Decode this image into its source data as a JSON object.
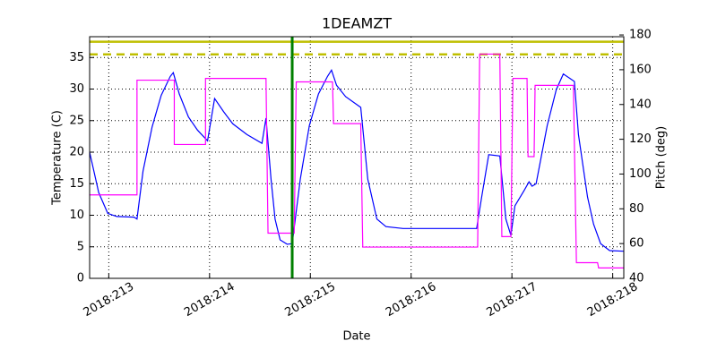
{
  "chart_data": {
    "type": "line",
    "title": "1DEAMZT",
    "x_label": "Date",
    "y_label": "Temperature (C)",
    "y2_label": "Pitch (deg)",
    "xlim": [
      212.81,
      218.11
    ],
    "xticks": [
      {
        "value": 213,
        "label": "2018:213"
      },
      {
        "value": 214,
        "label": "2018:214"
      },
      {
        "value": 215,
        "label": "2018:215"
      },
      {
        "value": 216,
        "label": "2018:216"
      },
      {
        "value": 217,
        "label": "2018:217"
      },
      {
        "value": 218,
        "label": "2018:218"
      }
    ],
    "ylim": [
      0,
      38.3
    ],
    "yticks": [
      0,
      5,
      10,
      15,
      20,
      25,
      30,
      35
    ],
    "y2lim": [
      40,
      179
    ],
    "y2ticks": [
      40,
      60,
      80,
      100,
      120,
      140,
      160,
      180
    ],
    "y2_color": "#ff00ff",
    "grid": true,
    "series": [
      {
        "color": "#0000ff",
        "axis": "y",
        "x": [
          212.81,
          212.9,
          212.99,
          213.08,
          213.25,
          213.28,
          213.34,
          213.43,
          213.52,
          213.61,
          213.64,
          213.7,
          213.79,
          213.88,
          213.98,
          214.05,
          214.14,
          214.23,
          214.37,
          214.52,
          214.56,
          214.61,
          214.65,
          214.7,
          214.77,
          214.82,
          214.9,
          214.99,
          215.08,
          215.17,
          215.21,
          215.26,
          215.35,
          215.5,
          215.57,
          215.66,
          215.75,
          215.92,
          216.65,
          216.7,
          216.77,
          216.88,
          216.94,
          216.99,
          217.03,
          217.12,
          217.17,
          217.2,
          217.24,
          217.35,
          217.44,
          217.51,
          217.62,
          217.66,
          217.75,
          217.81,
          217.88,
          217.97,
          218.11
        ],
        "values": [
          20,
          13.6,
          10.3,
          9.8,
          9.7,
          9.4,
          17,
          24,
          29,
          32,
          32.6,
          29.2,
          25.6,
          23.5,
          21.8,
          28.5,
          26.4,
          24.5,
          22.8,
          21.4,
          25.4,
          15.7,
          9.4,
          6.1,
          5.4,
          5.5,
          15.7,
          24.2,
          29.2,
          32,
          33,
          30.6,
          28.8,
          27.1,
          15.7,
          9.4,
          8.2,
          7.9,
          7.9,
          12.9,
          19.6,
          19.4,
          9.4,
          6.8,
          11.5,
          13.9,
          15.3,
          14.6,
          15,
          24.2,
          29.9,
          32.4,
          31.2,
          22.8,
          12.9,
          8.6,
          5.5,
          4.4,
          4.3
        ]
      },
      {
        "color": "#ff00ff",
        "axis": "y2",
        "x": [
          212.81,
          213.28,
          213.28,
          213.65,
          213.65,
          213.96,
          213.96,
          214.56,
          214.58,
          214.84,
          214.86,
          215.22,
          215.23,
          215.5,
          215.52,
          216.66,
          216.68,
          216.88,
          216.9,
          216.99,
          217.01,
          217.15,
          217.16,
          217.22,
          217.23,
          217.61,
          217.64,
          217.85,
          217.86,
          218.11
        ],
        "values": [
          88,
          88,
          154,
          154,
          117,
          117,
          155,
          155,
          66,
          66,
          153,
          153,
          129,
          129,
          58,
          58,
          169,
          169,
          64,
          64,
          155,
          155,
          110,
          110,
          151,
          151,
          49,
          49,
          46,
          46
        ]
      }
    ],
    "hlines": [
      {
        "value": 37.5,
        "color": "#bfbf00",
        "dashed": false
      },
      {
        "value": 35.5,
        "color": "#bfbf00",
        "dashed": true
      }
    ],
    "vline": {
      "value": 214.82,
      "color": "#008000"
    }
  }
}
